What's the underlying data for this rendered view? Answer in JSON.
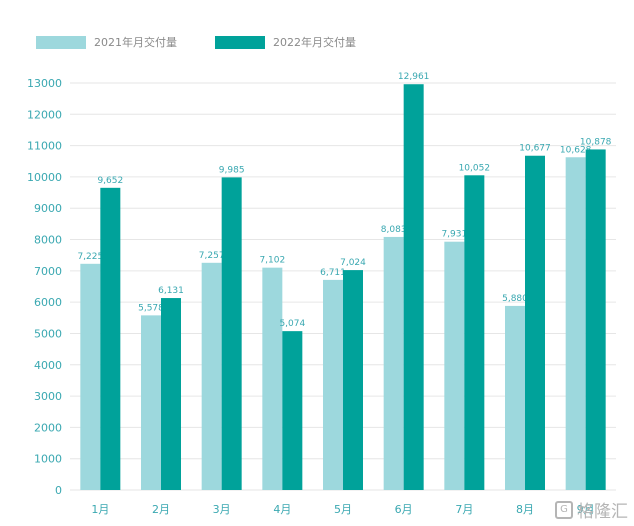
{
  "colors": {
    "series_2021": "#9dd8dd",
    "series_2022": "#00a29a",
    "text": "#3aa8b1",
    "grid": "#e6e6e6"
  },
  "watermark": {
    "icon": "gelonghui-logo-icon",
    "text": "格隆汇"
  },
  "chart_data": {
    "type": "bar",
    "title": "",
    "xlabel": "",
    "ylabel": "",
    "categories": [
      "1月",
      "2月",
      "3月",
      "4月",
      "5月",
      "6月",
      "7月",
      "8月",
      "9月"
    ],
    "series": [
      {
        "name": "2021年月交付量",
        "values": [
          7225,
          5578,
          7257,
          7102,
          6711,
          8083,
          7931,
          5880,
          10628
        ],
        "labels": [
          "7,225",
          "5,578",
          "7,257",
          "7,102",
          "6,711",
          "8,083",
          "7,931",
          "5,880",
          "10,628"
        ]
      },
      {
        "name": "2022年月交付量",
        "values": [
          9652,
          6131,
          9985,
          5074,
          7024,
          12961,
          10052,
          10677,
          10878
        ],
        "labels": [
          "9,652",
          "6,131",
          "9,985",
          "5,074",
          "7,024",
          "12,961",
          "10,052",
          "10,677",
          "10,878"
        ]
      }
    ],
    "ylim": [
      0,
      13000
    ],
    "yticks": [
      0,
      1000,
      2000,
      3000,
      4000,
      5000,
      6000,
      7000,
      8000,
      9000,
      10000,
      11000,
      12000,
      13000
    ],
    "grid": true,
    "legend_position": "top-left"
  }
}
